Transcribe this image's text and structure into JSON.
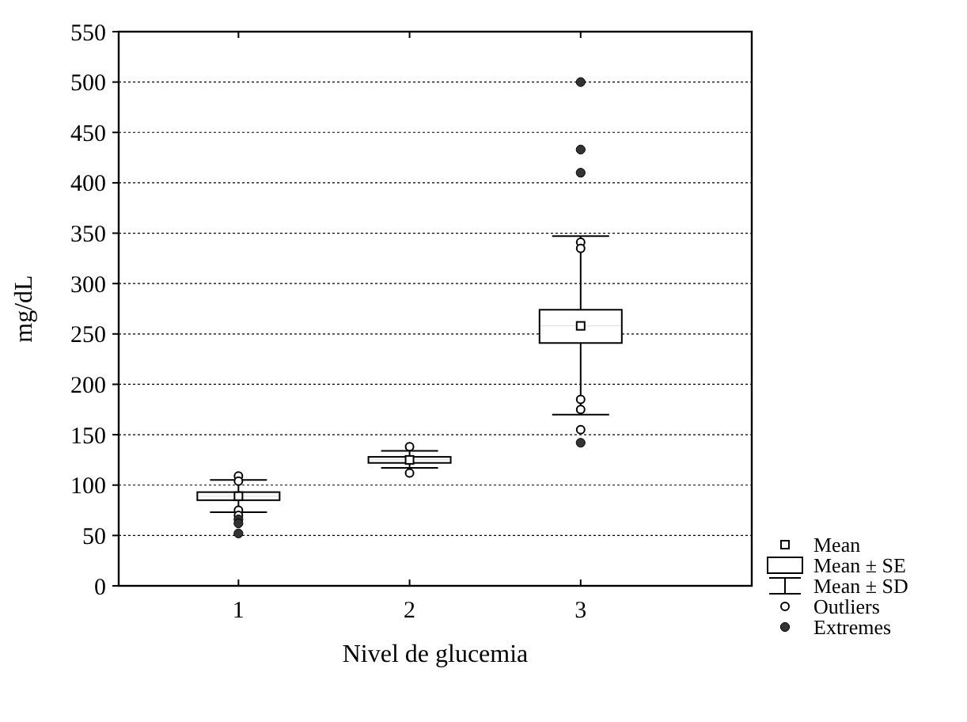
{
  "chart_data": {
    "type": "box",
    "xlabel": "Nivel de glucemia",
    "ylabel": "mg/dL",
    "categories": [
      "1",
      "2",
      "3"
    ],
    "ylim": [
      0,
      550
    ],
    "yticks": [
      0,
      50,
      100,
      150,
      200,
      250,
      300,
      350,
      400,
      450,
      500,
      550
    ],
    "grid": "y",
    "legend": "bottom right",
    "annotations": [
      "Mean",
      "Mean ± SE",
      "Mean ± SD",
      "Outliers"
    ],
    "series": [
      {
        "type": "box",
        "color": "#000000",
        "boxes": [
          {
            "low": 73,
            "q1": 85,
            "median": 89,
            "q3": 93,
            "high": 105,
            "mean": 89,
            "outliers": [
              109,
              104,
              75,
              70
            ]
          },
          {
            "low": 117,
            "q1": 122,
            "median": 125,
            "q3": 128,
            "high": 134,
            "mean": 125,
            "outliers": [
              138,
              112
            ]
          },
          {
            "low": 170,
            "q1": 241,
            "median": 258,
            "q3": 274,
            "high": 347,
            "mean": 258,
            "outliers": [
              341,
              335,
              185,
              175,
              155
            ]
          }
        ]
      },
      {
        "type": "scatter",
        "name": "Extremes",
        "color": "#333333",
        "x": [
          "1",
          "1",
          "1",
          "3",
          "3",
          "3",
          "3"
        ],
        "values": [
          66,
          62,
          52,
          500,
          433,
          410,
          142
        ]
      }
    ]
  }
}
